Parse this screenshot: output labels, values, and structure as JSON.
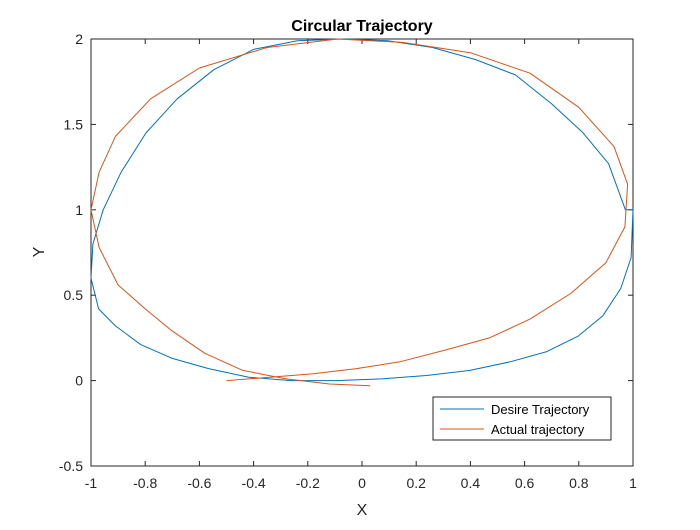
{
  "chart_data": {
    "type": "line",
    "title": "Circular Trajectory",
    "xlabel": "X",
    "ylabel": "Y",
    "xlim": [
      -1,
      1
    ],
    "ylim": [
      -0.5,
      2
    ],
    "xticks": [
      -1,
      -0.8,
      -0.6,
      -0.4,
      -0.2,
      0,
      0.2,
      0.4,
      0.6,
      0.8,
      1
    ],
    "xtick_labels": [
      "-1",
      "-0.8",
      "-0.6",
      "-0.4",
      "-0.2",
      "0",
      "0.2",
      "0.4",
      "0.6",
      "0.8",
      "1"
    ],
    "yticks": [
      -0.5,
      0,
      0.5,
      1,
      1.5,
      2
    ],
    "ytick_labels": [
      "-0.5",
      "0",
      "0.5",
      "1",
      "1.5",
      "2"
    ],
    "grid": false,
    "legend_position": "bottom-right",
    "series": [
      {
        "name": "Desire Trajectory",
        "color": "#0072BD",
        "x": [
          1.0,
          0.993,
          0.955,
          0.889,
          0.797,
          0.682,
          0.547,
          0.398,
          0.238,
          0.072,
          -0.095,
          -0.26,
          -0.418,
          -0.566,
          -0.7,
          -0.816,
          -0.91,
          -0.972,
          -1.0,
          -0.993,
          -0.955,
          -0.889,
          -0.797,
          -0.682,
          -0.547,
          -0.398,
          -0.238,
          -0.072,
          0.095,
          0.26,
          0.418,
          0.566,
          0.7,
          0.816,
          0.91,
          0.972,
          1.0
        ],
        "y": [
          1.0,
          0.72,
          0.54,
          0.38,
          0.26,
          0.17,
          0.11,
          0.06,
          0.03,
          0.01,
          0.0,
          0.0,
          0.02,
          0.07,
          0.13,
          0.21,
          0.32,
          0.42,
          0.6,
          0.8,
          1.0,
          1.22,
          1.45,
          1.65,
          1.82,
          1.94,
          1.99,
          2.0,
          1.99,
          1.95,
          1.88,
          1.79,
          1.62,
          1.45,
          1.27,
          1.0,
          1.0
        ]
      },
      {
        "name": "Actual trajectory",
        "color": "#D95319",
        "x": [
          -0.5,
          -0.34,
          -0.18,
          -0.02,
          0.14,
          0.31,
          0.47,
          0.62,
          0.77,
          0.9,
          0.97,
          0.98,
          0.93,
          0.8,
          0.62,
          0.4,
          0.15,
          -0.09,
          -0.35,
          -0.6,
          -0.78,
          -0.91,
          -0.97,
          -1.0,
          -0.97,
          -0.9,
          -0.8,
          -0.7,
          -0.58,
          -0.44,
          -0.28,
          -0.12,
          0.03
        ],
        "y": [
          0.0,
          0.02,
          0.04,
          0.07,
          0.11,
          0.18,
          0.25,
          0.36,
          0.51,
          0.69,
          0.9,
          1.15,
          1.37,
          1.6,
          1.8,
          1.92,
          1.98,
          2.0,
          1.95,
          1.83,
          1.65,
          1.43,
          1.22,
          1.0,
          0.78,
          0.56,
          0.42,
          0.29,
          0.16,
          0.06,
          0.01,
          -0.02,
          -0.03
        ]
      }
    ]
  }
}
